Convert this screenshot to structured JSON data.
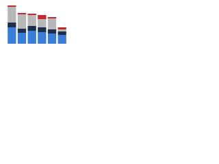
{
  "chart_data": {
    "type": "bar",
    "stacked": true,
    "categories": [
      null,
      null,
      null,
      null,
      null,
      null
    ],
    "series": [
      {
        "color": "#3a7dd8",
        "values": [
          24,
          16,
          19,
          17,
          15,
          13
        ]
      },
      {
        "color": "#1f2e4b",
        "values": [
          7,
          6,
          7,
          7,
          6,
          5
        ]
      },
      {
        "color": "#b8b8b8",
        "values": [
          23,
          21,
          16,
          12,
          16,
          3
        ]
      },
      {
        "color": "#c3282f",
        "values": [
          2,
          2,
          2,
          6,
          2,
          3
        ]
      }
    ],
    "ylim": [
      0,
      60
    ]
  }
}
